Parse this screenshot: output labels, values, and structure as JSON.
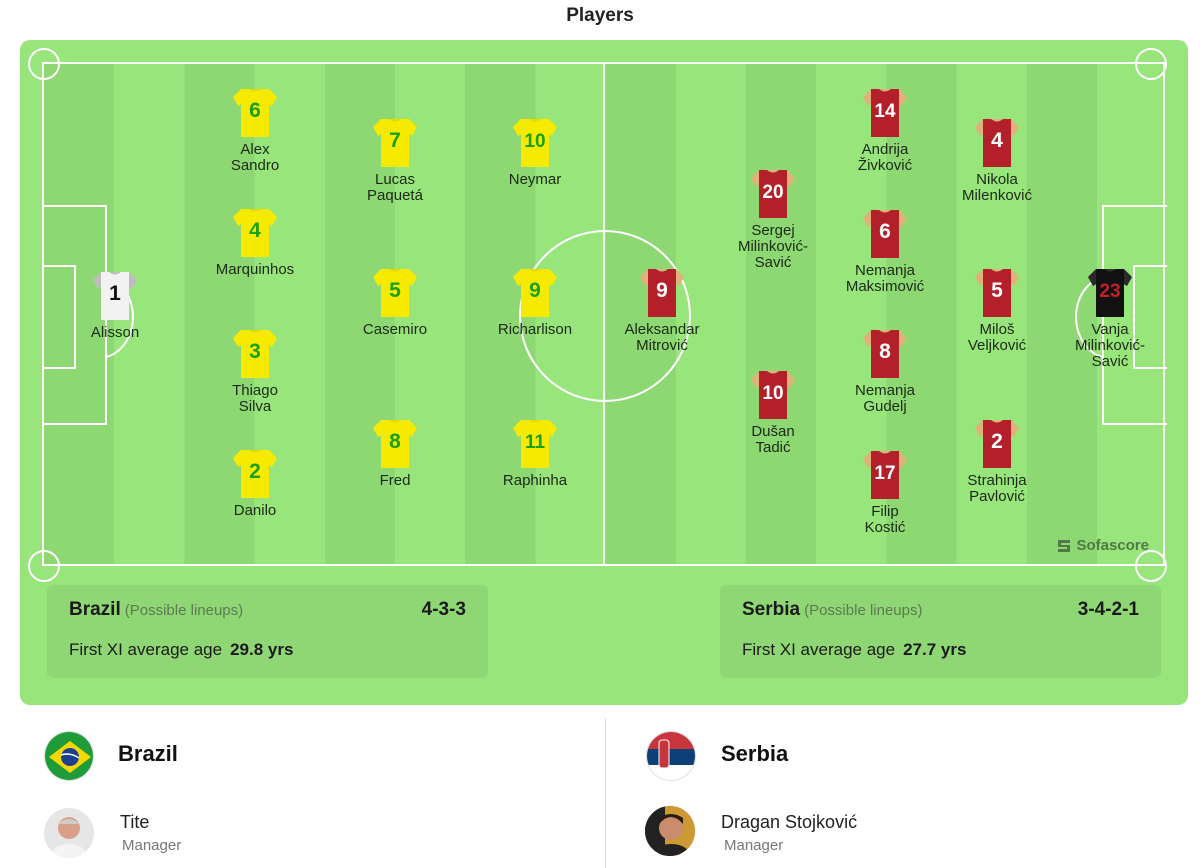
{
  "title": "Players",
  "colors": {
    "board": "#98e57c",
    "brazil_shirt": "#f5ea00",
    "brazil_number": "#1aa01a",
    "serbia_shirt": "#b3202a",
    "serbia_sleeve": "#e0b27a"
  },
  "home": {
    "team": "Brazil",
    "note": "(Possible lineups)",
    "formation": "4-3-3",
    "age_label": "First XI average age",
    "age_value": "29.8 yrs",
    "manager": "Tite",
    "manager_role": "Manager",
    "players": [
      {
        "number": "1",
        "name": "Alisson",
        "gk": true
      },
      {
        "number": "6",
        "name": "Alex\nSandro"
      },
      {
        "number": "4",
        "name": "Marquinhos"
      },
      {
        "number": "3",
        "name": "Thiago\nSilva"
      },
      {
        "number": "2",
        "name": "Danilo"
      },
      {
        "number": "7",
        "name": "Lucas\nPaquetá"
      },
      {
        "number": "5",
        "name": "Casemiro"
      },
      {
        "number": "8",
        "name": "Fred"
      },
      {
        "number": "10",
        "name": "Neymar"
      },
      {
        "number": "9",
        "name": "Richarlison"
      },
      {
        "number": "11",
        "name": "Raphinha"
      }
    ]
  },
  "away": {
    "team": "Serbia",
    "note": "(Possible lineups)",
    "formation": "3-4-2-1",
    "age_label": "First XI average age",
    "age_value": "27.7 yrs",
    "manager": "Dragan Stojković",
    "manager_role": "Manager",
    "players": [
      {
        "number": "9",
        "name": "Aleksandar\nMitrović"
      },
      {
        "number": "20",
        "name": "Sergej\nMilinković-\nSavić"
      },
      {
        "number": "10",
        "name": "Dušan\nTadić"
      },
      {
        "number": "14",
        "name": "Andrija\nŽivković"
      },
      {
        "number": "6",
        "name": "Nemanja\nMaksimović"
      },
      {
        "number": "8",
        "name": "Nemanja\nGudelj"
      },
      {
        "number": "17",
        "name": "Filip\nKostić"
      },
      {
        "number": "4",
        "name": "Nikola\nMilenković"
      },
      {
        "number": "5",
        "name": "Miloš\nVeljković"
      },
      {
        "number": "2",
        "name": "Strahinja\nPavlović"
      },
      {
        "number": "23",
        "name": "Vanja\nMilinković-\nSavić",
        "gk": true
      }
    ]
  },
  "watermark": "Sofascore"
}
